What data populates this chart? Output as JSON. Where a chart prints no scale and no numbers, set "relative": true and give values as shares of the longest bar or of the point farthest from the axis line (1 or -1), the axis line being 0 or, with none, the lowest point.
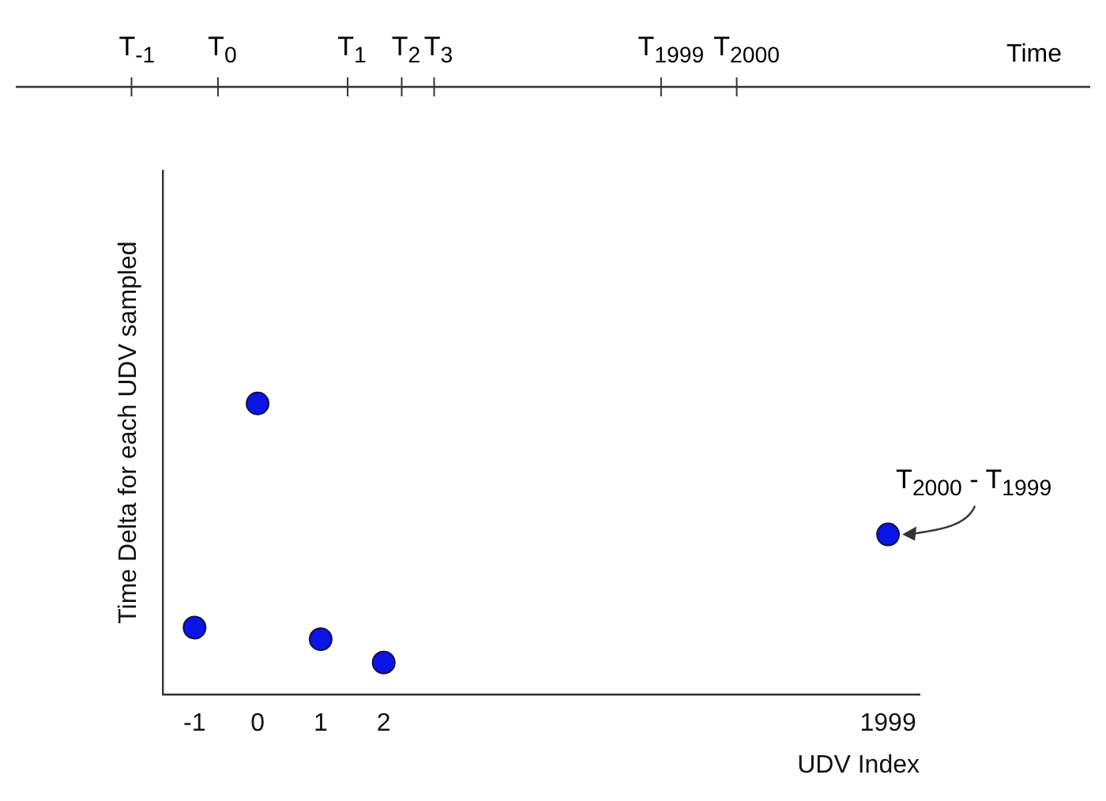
{
  "chart_data": [
    {
      "type": "other",
      "xlabel": "Time",
      "annotations": [
        "T$_{-1}$",
        "T$_{0}$",
        "T$_{1}$",
        "T$_{2}$",
        "T$_{3}$",
        "T$_{1999}$",
        "T$_{2000}$"
      ]
    },
    {
      "type": "scatter",
      "relative": true,
      "xlabel": "UDV Index",
      "ylabel": "Time Delta for each UDV sampled",
      "categories": [
        "-1",
        "0",
        "1",
        "2",
        null,
        null,
        null,
        null,
        null,
        null,
        null,
        "1999"
      ],
      "series": [
        {
          "color": "#0a14e6",
          "values": [
            0.23,
            1,
            0.19,
            0.11,
            null,
            null,
            null,
            null,
            null,
            null,
            null,
            0.55
          ]
        }
      ],
      "marker": "circle",
      "grid": false,
      "legend": false,
      "annotations": [
        {
          "text": "T$_{2000}$ - T$_{1999}$",
          "x": "1999",
          "y": 0.55
        }
      ]
    }
  ]
}
